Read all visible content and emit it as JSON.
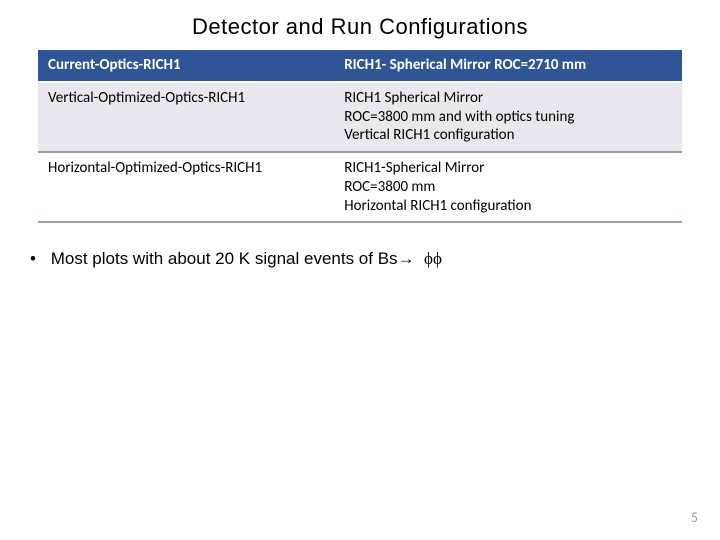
{
  "title": "Detector  and Run   Configurations",
  "table": {
    "r0c0": "Current-Optics-RICH1",
    "r0c1": "RICH1- Spherical Mirror  ROC=2710 mm",
    "r1c0": "Vertical-Optimized-Optics-RICH1",
    "r1c1": "RICH1  Spherical Mirror\nROC=3800 mm and with optics tuning\nVertical  RICH1 configuration",
    "r2c0": "Horizontal-Optimized-Optics-RICH1",
    "r2c1": "RICH1-Spherical Mirror\nROC=3800 mm\nHorizontal RICH1 configuration"
  },
  "bullet_prefix": "Most plots with about 20 K  signal  events of  Bs",
  "arrow": "→",
  "phi": "ϕϕ",
  "page_number": "5",
  "colors": {
    "header_bg": "#2f5597",
    "header_fg": "#ffffff",
    "alt_bg": "#e8e8ee",
    "divider": "#9aa0a8",
    "pagenum": "#9c9c9c"
  }
}
